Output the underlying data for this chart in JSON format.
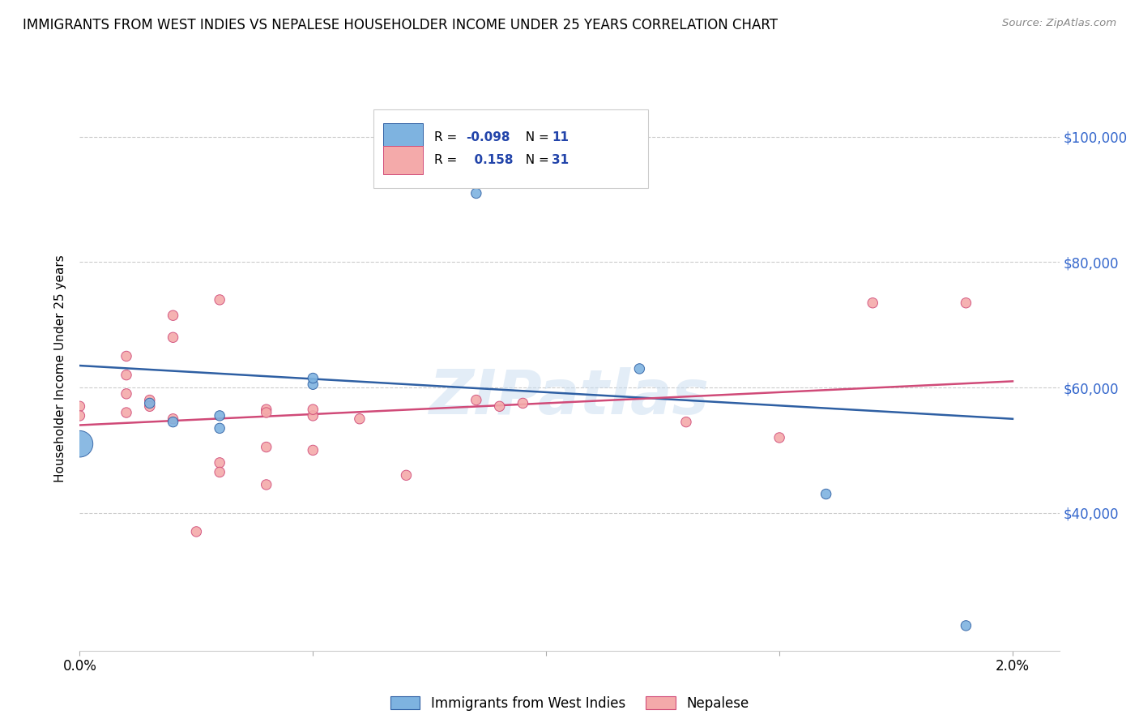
{
  "title": "IMMIGRANTS FROM WEST INDIES VS NEPALESE HOUSEHOLDER INCOME UNDER 25 YEARS CORRELATION CHART",
  "source": "Source: ZipAtlas.com",
  "ylabel": "Householder Income Under 25 years",
  "xlim": [
    0.0,
    0.021
  ],
  "ylim": [
    18000,
    108000
  ],
  "yticks": [
    40000,
    60000,
    80000,
    100000
  ],
  "ytick_labels": [
    "$40,000",
    "$60,000",
    "$80,000",
    "$100,000"
  ],
  "xticks": [
    0.0,
    0.005,
    0.01,
    0.015,
    0.02
  ],
  "xtick_labels": [
    "0.0%",
    "",
    "",
    "",
    "2.0%"
  ],
  "blue_color": "#7EB3E0",
  "pink_color": "#F4AAAA",
  "line_blue": "#2E5FA3",
  "line_pink": "#D04A78",
  "watermark": "ZIPatlas",
  "blue_points": [
    [
      0.0,
      51000
    ],
    [
      0.0015,
      57500
    ],
    [
      0.002,
      54500
    ],
    [
      0.003,
      55500
    ],
    [
      0.003,
      53500
    ],
    [
      0.005,
      60500
    ],
    [
      0.005,
      61500
    ],
    [
      0.0085,
      91000
    ],
    [
      0.012,
      63000
    ],
    [
      0.016,
      43000
    ],
    [
      0.019,
      22000
    ]
  ],
  "blue_sizes": [
    550,
    80,
    80,
    80,
    80,
    80,
    80,
    80,
    80,
    80,
    80
  ],
  "pink_points": [
    [
      0.0,
      57000
    ],
    [
      0.0,
      55500
    ],
    [
      0.001,
      62000
    ],
    [
      0.001,
      59000
    ],
    [
      0.001,
      65000
    ],
    [
      0.001,
      56000
    ],
    [
      0.0015,
      58000
    ],
    [
      0.0015,
      57000
    ],
    [
      0.002,
      71500
    ],
    [
      0.002,
      68000
    ],
    [
      0.002,
      55000
    ],
    [
      0.003,
      74000
    ],
    [
      0.003,
      48000
    ],
    [
      0.003,
      46500
    ],
    [
      0.004,
      56500
    ],
    [
      0.004,
      56000
    ],
    [
      0.004,
      50500
    ],
    [
      0.004,
      44500
    ],
    [
      0.005,
      55500
    ],
    [
      0.005,
      56500
    ],
    [
      0.005,
      50000
    ],
    [
      0.006,
      55000
    ],
    [
      0.007,
      46000
    ],
    [
      0.0085,
      58000
    ],
    [
      0.009,
      57000
    ],
    [
      0.0095,
      57500
    ],
    [
      0.013,
      54500
    ],
    [
      0.015,
      52000
    ],
    [
      0.017,
      73500
    ],
    [
      0.019,
      73500
    ],
    [
      0.0025,
      37000
    ]
  ],
  "pink_sizes": [
    80,
    80,
    80,
    80,
    80,
    80,
    80,
    80,
    80,
    80,
    80,
    80,
    80,
    80,
    80,
    80,
    80,
    80,
    80,
    80,
    80,
    80,
    80,
    80,
    80,
    80,
    80,
    80,
    80,
    80,
    80
  ]
}
